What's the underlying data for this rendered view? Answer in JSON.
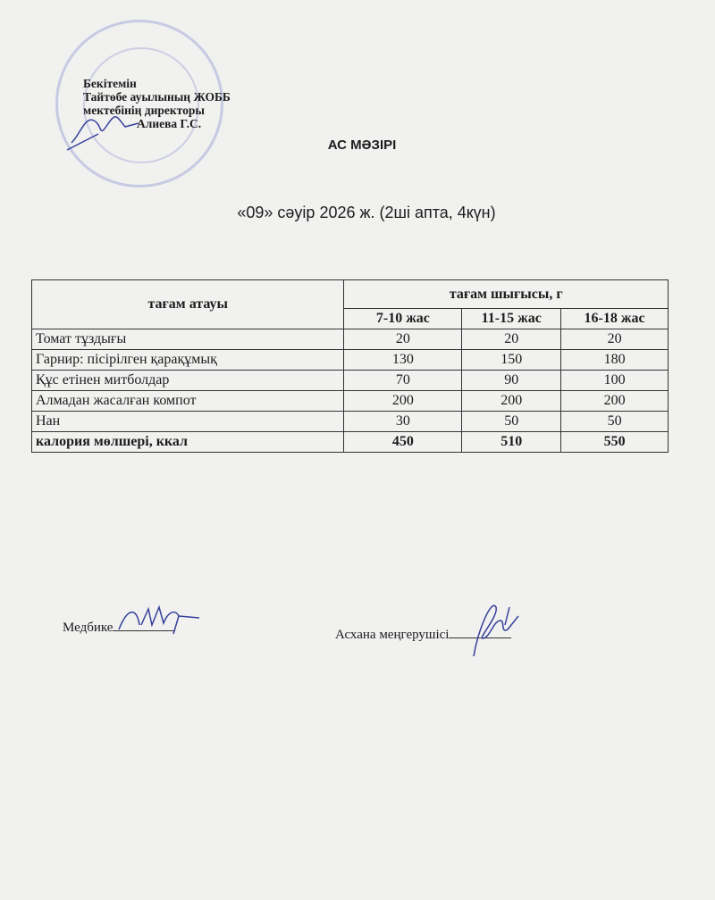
{
  "approval": {
    "lines": [
      "Бекітемін",
      "Тайтөбе ауылының ЖОББ",
      "мектебінің директоры",
      "Алиева Г.С."
    ]
  },
  "title": "АС МӘЗІРІ",
  "date_line": "«09» сәуір 2026 ж. (2ші апта, 4күн)",
  "table": {
    "header_name": "тағам атауы",
    "header_output": "тағам шығысы, г",
    "age_groups": [
      "7-10 жас",
      "11-15 жас",
      "16-18 жас"
    ],
    "rows": [
      {
        "name": "Томат тұздығы",
        "values": [
          "20",
          "20",
          "20"
        ]
      },
      {
        "name": "Гарнир: пісірілген қарақұмық",
        "values": [
          "130",
          "150",
          "180"
        ]
      },
      {
        "name": "Құс етінен митболдар",
        "values": [
          "70",
          "90",
          "100"
        ]
      },
      {
        "name": "Алмадан жасалған компот",
        "values": [
          "200",
          "200",
          "200"
        ]
      },
      {
        "name": "Нан",
        "values": [
          "30",
          "50",
          "50"
        ]
      }
    ],
    "total": {
      "name": "калория мөлшері, ккал",
      "values": [
        "450",
        "510",
        "550"
      ]
    }
  },
  "signatures": {
    "nurse": "Медбике",
    "canteen": "Асхана меңгерушісі"
  }
}
